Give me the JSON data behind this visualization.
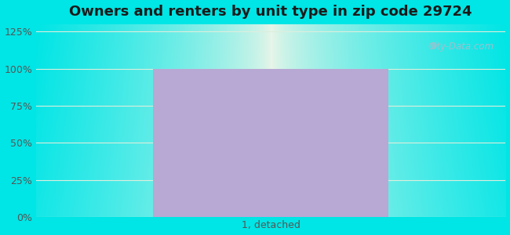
{
  "title": "Owners and renters by unit type in zip code 29724",
  "categories": [
    "1, detached"
  ],
  "values": [
    100
  ],
  "bar_color": "#b8a8d4",
  "bar_width": 0.5,
  "yticks": [
    0,
    25,
    50,
    75,
    100,
    125
  ],
  "ytick_labels": [
    "0%",
    "25%",
    "50%",
    "75%",
    "100%",
    "125%"
  ],
  "ylim": [
    0,
    130
  ],
  "title_fontsize": 13,
  "tick_fontsize": 9,
  "bg_outer_color": "#00e5e5",
  "bg_center_color": "#eaf5e8",
  "bg_edge_color": "#c8ede0",
  "watermark_text": "City-Data.com",
  "watermark_color": "#aabccc",
  "grid_color": "#ddeedd",
  "xlabel_color": "#555555",
  "ylabel_color": "#555555"
}
